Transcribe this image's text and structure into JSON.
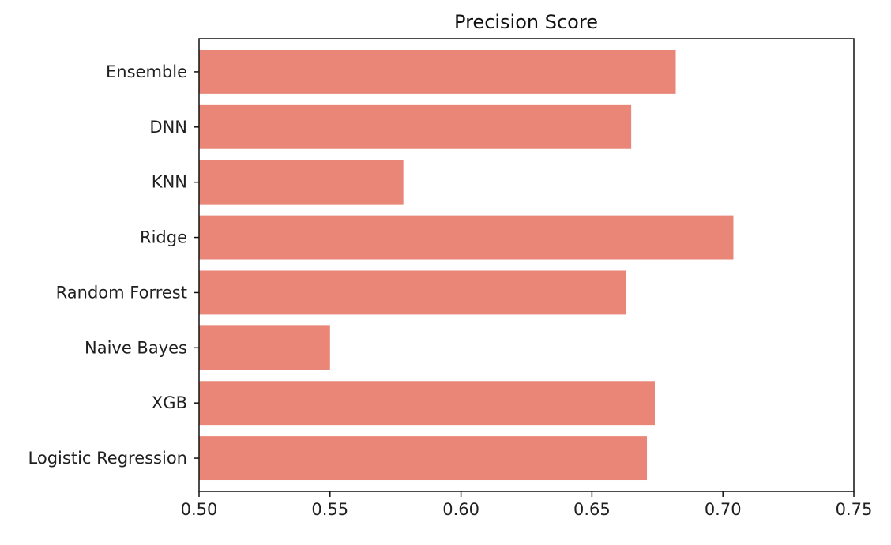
{
  "chart_data": {
    "type": "bar",
    "orientation": "horizontal",
    "title": "Precision Score",
    "xlabel": "",
    "ylabel": "",
    "categories": [
      "Logistic Regression",
      "XGB",
      "Naive Bayes",
      "Random Forrest",
      "Ridge",
      "KNN",
      "DNN",
      "Ensemble"
    ],
    "values": [
      0.671,
      0.674,
      0.55,
      0.663,
      0.704,
      0.578,
      0.665,
      0.682
    ],
    "xlim": [
      0.5,
      0.75
    ],
    "x_ticks": [
      "0.50",
      "0.55",
      "0.60",
      "0.65",
      "0.70",
      "0.75"
    ],
    "grid": false,
    "bar_color": "#E98677"
  }
}
